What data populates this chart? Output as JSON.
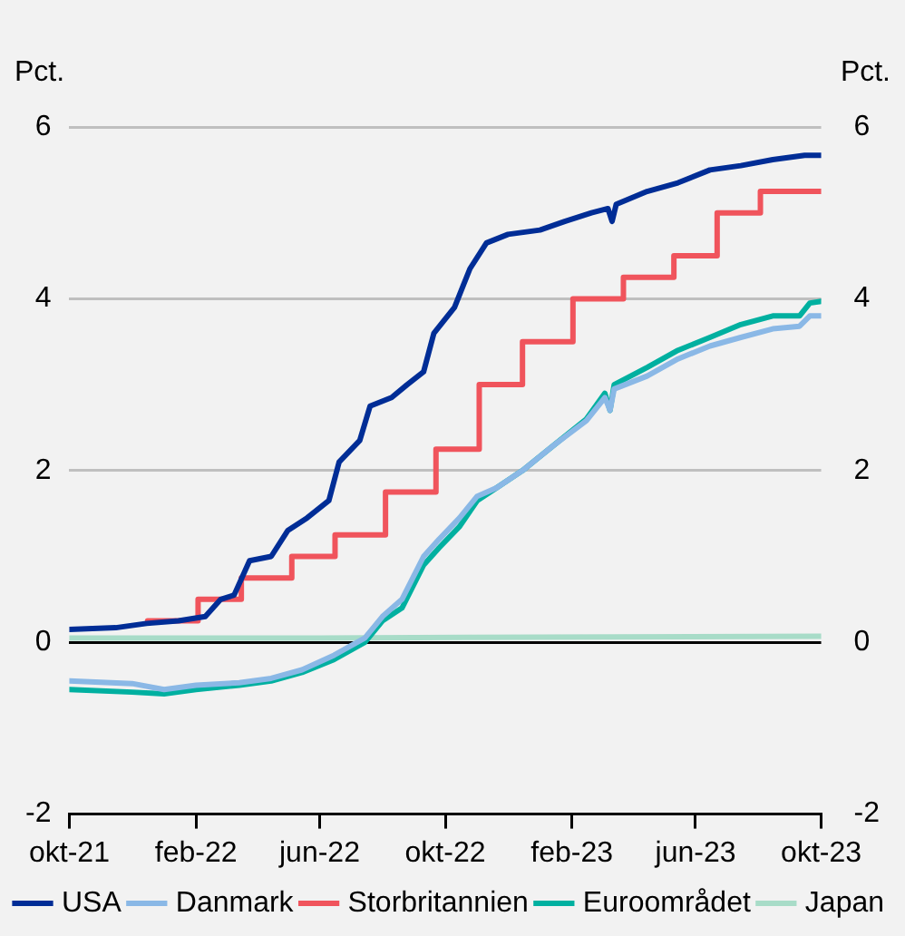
{
  "chart_data": {
    "type": "line",
    "ylabel": "Pct.",
    "y2label": "Pct.",
    "xlim": [
      "2021-10-01",
      "2023-10-01"
    ],
    "xticks": [
      {
        "value": "2021-10-01",
        "label": "okt-21"
      },
      {
        "value": "2022-02-01",
        "label": "feb-22"
      },
      {
        "value": "2022-06-01",
        "label": "jun-22"
      },
      {
        "value": "2022-10-01",
        "label": "okt-22"
      },
      {
        "value": "2023-02-01",
        "label": "feb-23"
      },
      {
        "value": "2023-06-01",
        "label": "jun-23"
      },
      {
        "value": "2023-10-01",
        "label": "okt-23"
      }
    ],
    "ylim": [
      -2,
      6
    ],
    "yticks": [
      -2,
      0,
      2,
      4,
      6
    ],
    "y2lim": [
      -2,
      6
    ],
    "y2ticks": [
      -2,
      0,
      2,
      4,
      6
    ],
    "grid": "y",
    "legend": "bottom",
    "marker": "none",
    "line_style": "solid",
    "series": [
      {
        "name": "USA",
        "color": "#002d96",
        "x": [
          "2021-10-01",
          "2021-11-15",
          "2021-12-15",
          "2022-01-15",
          "2022-02-10",
          "2022-02-25",
          "2022-03-10",
          "2022-03-25",
          "2022-04-15",
          "2022-05-01",
          "2022-05-20",
          "2022-06-10",
          "2022-06-20",
          "2022-07-10",
          "2022-07-20",
          "2022-08-10",
          "2022-08-25",
          "2022-09-10",
          "2022-09-20",
          "2022-10-10",
          "2022-10-25",
          "2022-11-10",
          "2022-12-01",
          "2023-01-01",
          "2023-01-25",
          "2023-02-20",
          "2023-03-08",
          "2023-03-12",
          "2023-03-16",
          "2023-04-15",
          "2023-05-15",
          "2023-06-15",
          "2023-07-15",
          "2023-08-15",
          "2023-09-15",
          "2023-10-01"
        ],
        "values": [
          0.15,
          0.17,
          0.22,
          0.25,
          0.3,
          0.5,
          0.55,
          0.95,
          1.0,
          1.3,
          1.45,
          1.65,
          2.1,
          2.35,
          2.75,
          2.85,
          3.0,
          3.15,
          3.6,
          3.9,
          4.35,
          4.65,
          4.75,
          4.8,
          4.9,
          5.0,
          5.05,
          4.9,
          5.1,
          5.25,
          5.35,
          5.5,
          5.55,
          5.62,
          5.67,
          5.67
        ]
      },
      {
        "name": "Danmark",
        "color": "#8ab8e6",
        "x": [
          "2021-10-01",
          "2021-12-01",
          "2022-01-01",
          "2022-02-01",
          "2022-03-15",
          "2022-04-15",
          "2022-05-15",
          "2022-06-15",
          "2022-07-15",
          "2022-08-01",
          "2022-08-20",
          "2022-09-10",
          "2022-09-25",
          "2022-10-15",
          "2022-11-01",
          "2022-11-20",
          "2022-12-15",
          "2023-01-15",
          "2023-02-15",
          "2023-03-05",
          "2023-03-10",
          "2023-03-14",
          "2023-04-15",
          "2023-05-15",
          "2023-06-15",
          "2023-07-15",
          "2023-08-15",
          "2023-09-10",
          "2023-09-20",
          "2023-10-01"
        ],
        "values": [
          -0.45,
          -0.48,
          -0.55,
          -0.5,
          -0.47,
          -0.42,
          -0.32,
          -0.15,
          0.05,
          0.3,
          0.5,
          1.0,
          1.2,
          1.45,
          1.7,
          1.8,
          2.0,
          2.3,
          2.58,
          2.85,
          2.7,
          2.95,
          3.1,
          3.3,
          3.45,
          3.55,
          3.65,
          3.68,
          3.8,
          3.8
        ]
      },
      {
        "name": "Storbritannien",
        "type": "step",
        "color": "#f0545c",
        "x": [
          "2021-12-16",
          "2022-02-03",
          "2022-03-17",
          "2022-05-05",
          "2022-06-16",
          "2022-08-04",
          "2022-09-22",
          "2022-11-03",
          "2022-12-15",
          "2023-02-02",
          "2023-03-23",
          "2023-05-11",
          "2023-06-22",
          "2023-08-03",
          "2023-10-01"
        ],
        "values": [
          0.25,
          0.5,
          0.75,
          1.0,
          1.25,
          1.75,
          2.25,
          3.0,
          3.5,
          4.0,
          4.25,
          4.5,
          5.0,
          5.25,
          5.25
        ]
      },
      {
        "name": "Euroområdet",
        "color": "#00b0a0",
        "x": [
          "2021-10-01",
          "2021-12-01",
          "2022-01-01",
          "2022-02-01",
          "2022-03-15",
          "2022-04-15",
          "2022-05-15",
          "2022-06-15",
          "2022-07-15",
          "2022-08-01",
          "2022-08-20",
          "2022-09-10",
          "2022-09-25",
          "2022-10-15",
          "2022-11-01",
          "2022-11-20",
          "2022-12-15",
          "2023-01-15",
          "2023-02-15",
          "2023-03-05",
          "2023-03-10",
          "2023-03-14",
          "2023-04-15",
          "2023-05-15",
          "2023-06-15",
          "2023-07-15",
          "2023-08-15",
          "2023-09-10",
          "2023-09-20",
          "2023-10-01"
        ],
        "values": [
          -0.55,
          -0.58,
          -0.6,
          -0.55,
          -0.5,
          -0.45,
          -0.35,
          -0.2,
          0.0,
          0.25,
          0.4,
          0.9,
          1.1,
          1.35,
          1.65,
          1.8,
          2.0,
          2.3,
          2.6,
          2.9,
          2.7,
          3.0,
          3.2,
          3.4,
          3.55,
          3.7,
          3.8,
          3.8,
          3.95,
          3.97
        ]
      },
      {
        "name": "Japan",
        "color": "#a8dcc8",
        "x": [
          "2021-10-01",
          "2022-06-01",
          "2023-01-01",
          "2023-10-01"
        ],
        "values": [
          0.05,
          0.05,
          0.06,
          0.07
        ]
      }
    ]
  }
}
